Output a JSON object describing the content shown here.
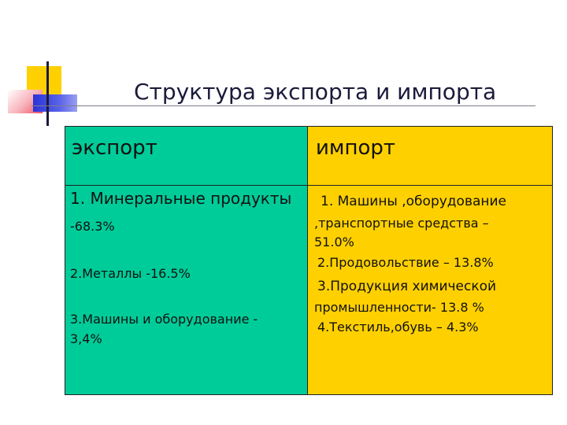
{
  "title": "Структура экспорта и импорта",
  "table": {
    "export_header": "экспорт",
    "import_header": "импорт",
    "export_items": [
      "1. Минеральные продукты",
      "-68.3%",
      "2.Металлы -16.5%",
      "3.Машины и оборудование -",
      "3,4%"
    ],
    "import_items": [
      "1. Машины ,оборудование",
      ",транспортные средства –",
      "51.0%",
      "2.Продовольствие – 13.8%",
      "3.Продукция химической",
      "промышленности-  13.8 %",
      "4.Текстиль,обувь – 4.3%"
    ]
  },
  "colors": {
    "export_bg": "#00cc99",
    "import_bg": "#ffd000",
    "title_color": "#1a1a3a"
  }
}
